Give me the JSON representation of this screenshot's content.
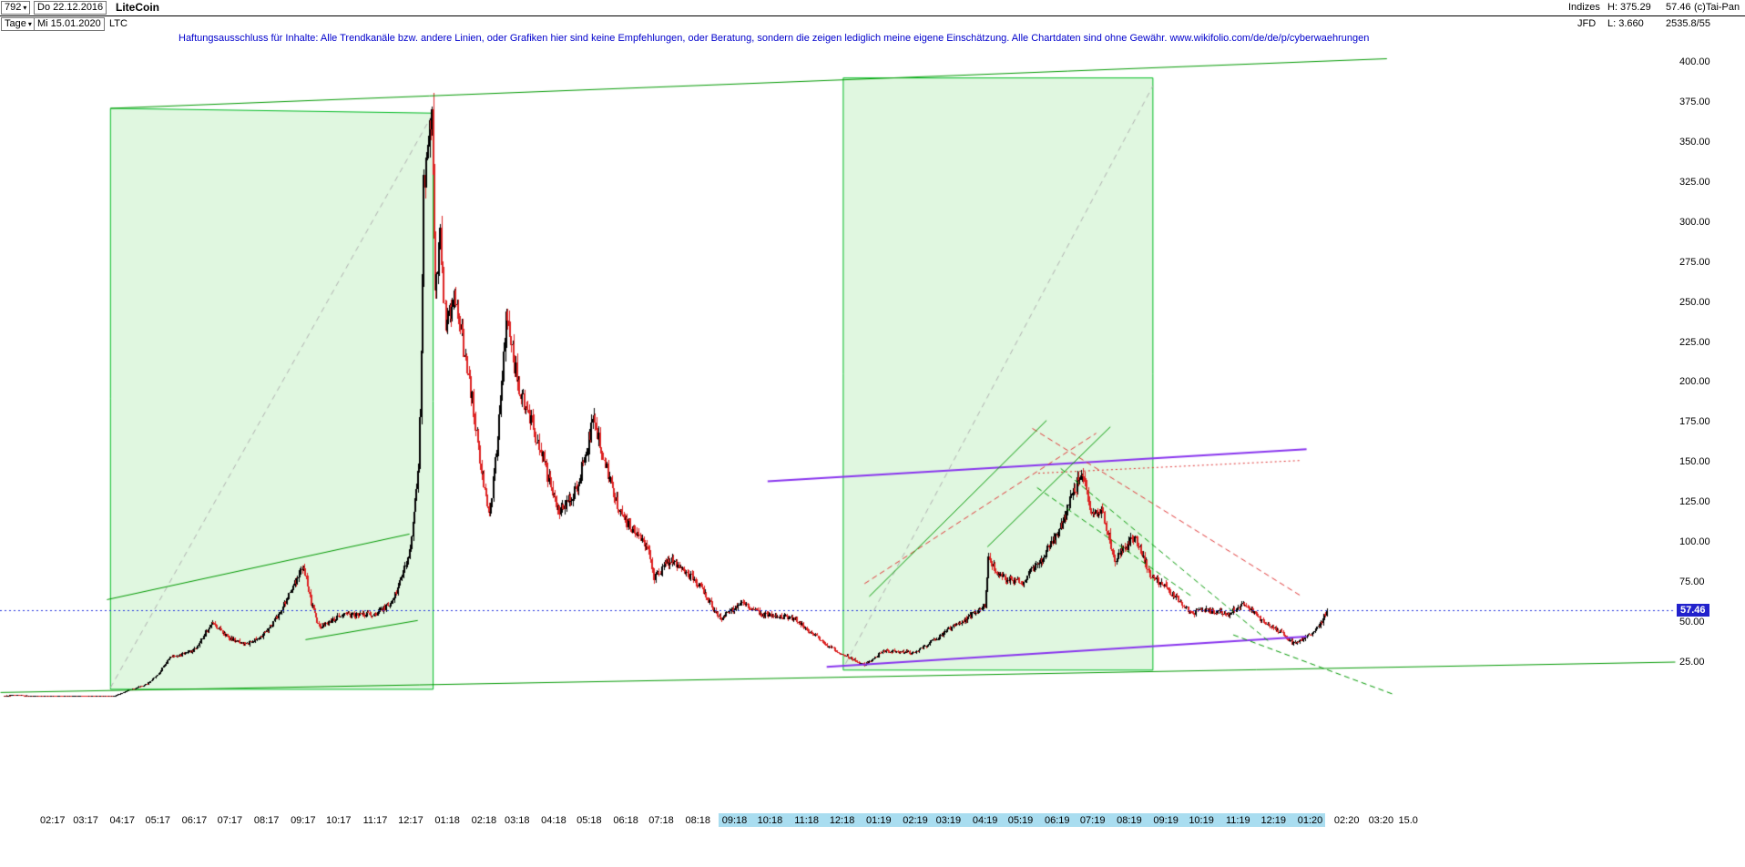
{
  "header": {
    "chart_number": "792",
    "start_date": "Do 22.12.2016",
    "title": "LiteCoin",
    "period": "Tage",
    "end_date": "Mi 15.01.2020",
    "symbol": "LTC",
    "indizes_label": "Indizes",
    "broker_label": "JFD",
    "high_text": "H: 375.29",
    "low_text": "L: 3.660",
    "last_price": "57.46",
    "volume_text": "2535.8/55",
    "copyright": "(c)Tai-Pan"
  },
  "icons": {
    "dropdown": "▾"
  },
  "disclaimer": "Haftungsausschluss für Inhalte: Alle Trendkanäle bzw. andere Linien, oder Grafiken hier sind keine Empfehlungen, oder Beratung, sondern die zeigen lediglich meine eigene Einschätzung. Alle Chartdaten sind ohne Gewähr.  www.wikifolio.com/de/de/p/cyberwaehrungen",
  "price_tag": "57.46",
  "colors": {
    "candle_up": "#000000",
    "candle_down": "#dd2222",
    "channel_fill": "rgba(0,190,0,0.12)",
    "channel_border": "#00bb22",
    "green": "#009900",
    "violet": "#8833ee",
    "red": "#e03333",
    "blue": "#2233dd",
    "gray_dash": "#b0b0b0",
    "axis_highlight": "#a9ddf0",
    "tag_bg": "#2222cc",
    "disclaimer_text": "#0000cc"
  },
  "chart_data": {
    "type": "candlestick",
    "title": "LiteCoin",
    "instrument": "LiteCoin (LTC)",
    "timeframe": "Tage (daily)",
    "date_range": {
      "from": "22.12.2016",
      "to": "15.01.2020"
    },
    "high": 375.29,
    "low": 3.66,
    "last": 57.46,
    "y_axis": {
      "ticks": [
        400,
        375,
        350,
        325,
        300,
        275,
        250,
        225,
        200,
        175,
        150,
        125,
        100,
        75,
        50,
        25
      ],
      "format": "0.00"
    },
    "x_axis": {
      "labels": [
        {
          "label": "02:17",
          "hl": false
        },
        {
          "label": "03:17",
          "hl": false
        },
        {
          "label": "04:17",
          "hl": false
        },
        {
          "label": "05:17",
          "hl": false
        },
        {
          "label": "06:17",
          "hl": false
        },
        {
          "label": "07:17",
          "hl": false
        },
        {
          "label": "08:17",
          "hl": false
        },
        {
          "label": "09:17",
          "hl": false
        },
        {
          "label": "10:17",
          "hl": false
        },
        {
          "label": "11:17",
          "hl": false
        },
        {
          "label": "12:17",
          "hl": false
        },
        {
          "label": "01:18",
          "hl": false
        },
        {
          "label": "02:18",
          "hl": false
        },
        {
          "label": "03:18",
          "hl": false
        },
        {
          "label": "04:18",
          "hl": false
        },
        {
          "label": "05:18",
          "hl": false
        },
        {
          "label": "06:18",
          "hl": false
        },
        {
          "label": "07:18",
          "hl": false
        },
        {
          "label": "08:18",
          "hl": false
        },
        {
          "label": "09:18",
          "hl": true
        },
        {
          "label": "10:18",
          "hl": true
        },
        {
          "label": "11:18",
          "hl": true
        },
        {
          "label": "12:18",
          "hl": true
        },
        {
          "label": "01:19",
          "hl": true
        },
        {
          "label": "02:19",
          "hl": true
        },
        {
          "label": "03:19",
          "hl": true
        },
        {
          "label": "04:19",
          "hl": true
        },
        {
          "label": "05:19",
          "hl": true
        },
        {
          "label": "06:19",
          "hl": true
        },
        {
          "label": "07:19",
          "hl": true
        },
        {
          "label": "08:19",
          "hl": true
        },
        {
          "label": "09:19",
          "hl": true
        },
        {
          "label": "10:19",
          "hl": true
        },
        {
          "label": "11:19",
          "hl": true
        },
        {
          "label": "12:19",
          "hl": true
        },
        {
          "label": "01:20",
          "hl": true
        },
        {
          "label": "02:20",
          "hl": false
        },
        {
          "label": "03:20",
          "hl": false
        },
        {
          "label": "15.0",
          "hl": false
        }
      ]
    },
    "price_anchors_note": "day offset from 2017-01-01, approximate close price read from chart",
    "price_anchors": [
      [
        -10,
        4.1
      ],
      [
        0,
        4.3
      ],
      [
        20,
        3.9
      ],
      [
        45,
        3.75
      ],
      [
        74,
        4.0
      ],
      [
        82,
        3.7
      ],
      [
        95,
        7.5
      ],
      [
        110,
        11
      ],
      [
        130,
        28
      ],
      [
        150,
        32
      ],
      [
        166,
        50
      ],
      [
        180,
        40
      ],
      [
        196,
        36
      ],
      [
        212,
        44
      ],
      [
        243,
        86
      ],
      [
        250,
        62
      ],
      [
        257,
        47
      ],
      [
        274,
        54
      ],
      [
        304,
        55
      ],
      [
        319,
        63
      ],
      [
        334,
        98
      ],
      [
        341,
        150
      ],
      [
        345,
        320
      ],
      [
        352,
        373
      ],
      [
        355,
        255
      ],
      [
        359,
        295
      ],
      [
        364,
        230
      ],
      [
        371,
        260
      ],
      [
        385,
        195
      ],
      [
        401,
        118
      ],
      [
        415,
        240
      ],
      [
        425,
        200
      ],
      [
        445,
        155
      ],
      [
        460,
        118
      ],
      [
        475,
        135
      ],
      [
        489,
        178
      ],
      [
        510,
        120
      ],
      [
        535,
        95
      ],
      [
        540,
        78
      ],
      [
        555,
        90
      ],
      [
        580,
        72
      ],
      [
        596,
        52
      ],
      [
        615,
        62
      ],
      [
        630,
        55
      ],
      [
        660,
        52
      ],
      [
        690,
        34
      ],
      [
        710,
        26
      ],
      [
        718,
        23.5
      ],
      [
        733,
        32
      ],
      [
        760,
        31
      ],
      [
        790,
        46
      ],
      [
        820,
        60
      ],
      [
        823,
        92
      ],
      [
        830,
        79
      ],
      [
        850,
        74
      ],
      [
        870,
        92
      ],
      [
        885,
        110
      ],
      [
        895,
        132
      ],
      [
        902,
        143
      ],
      [
        910,
        120
      ],
      [
        920,
        118
      ],
      [
        930,
        90
      ],
      [
        947,
        103
      ],
      [
        960,
        80
      ],
      [
        975,
        70
      ],
      [
        995,
        56
      ],
      [
        1010,
        57
      ],
      [
        1025,
        55
      ],
      [
        1040,
        62
      ],
      [
        1055,
        50
      ],
      [
        1070,
        44
      ],
      [
        1081,
        36.5
      ],
      [
        1095,
        42
      ],
      [
        1105,
        50
      ],
      [
        1109,
        57.46
      ]
    ],
    "overlays": {
      "channels": [
        {
          "d1": 80,
          "p1": 371,
          "d2": 353,
          "p2": 368,
          "pb": 8
        },
        {
          "d1": 700,
          "p1": 390,
          "d2": 962,
          "p2": 390,
          "pb": 20
        }
      ],
      "diagonals": [
        {
          "d1": 80,
          "p1": 9,
          "d2": 353,
          "p2": 368
        },
        {
          "d1": 702,
          "p1": 24,
          "d2": 962,
          "p2": 385
        }
      ],
      "lines": [
        {
          "d1": 80,
          "p1": 371,
          "d2": 1160,
          "p2": 402,
          "c": "green",
          "w": 1,
          "s": "solid"
        },
        {
          "d1": 77,
          "p1": 64,
          "d2": 333,
          "p2": 105,
          "c": "green",
          "w": 1,
          "s": "solid"
        },
        {
          "d1": 245,
          "p1": 39,
          "d2": 340,
          "p2": 51,
          "c": "green",
          "w": 1,
          "s": "solid"
        },
        {
          "d1": -13,
          "p1": 6,
          "d2": 1404,
          "p2": 25,
          "c": "green",
          "w": 1,
          "s": "solid"
        },
        {
          "d1": 636,
          "p1": 138,
          "d2": 1092,
          "p2": 158,
          "c": "violet",
          "w": 2,
          "s": "solid"
        },
        {
          "d1": 686,
          "p1": 22,
          "d2": 1092,
          "p2": 41,
          "c": "violet",
          "w": 2,
          "s": "solid"
        },
        {
          "d1": 718,
          "p1": 74,
          "d2": 914,
          "p2": 168,
          "c": "red",
          "w": 1,
          "s": "dashed"
        },
        {
          "d1": 860,
          "p1": 171,
          "d2": 1088,
          "p2": 66,
          "c": "red",
          "w": 1,
          "s": "dashed"
        },
        {
          "d1": 865,
          "p1": 143,
          "d2": 1088,
          "p2": 151,
          "c": "red",
          "w": 1,
          "s": "dotted"
        },
        {
          "d1": 722,
          "p1": 66,
          "d2": 872,
          "p2": 176,
          "c": "green",
          "w": 1,
          "s": "solid"
        },
        {
          "d1": 822,
          "p1": 97,
          "d2": 926,
          "p2": 172,
          "c": "green",
          "w": 1,
          "s": "solid"
        },
        {
          "d1": 864,
          "p1": 134,
          "d2": 995,
          "p2": 66,
          "c": "green",
          "w": 1,
          "s": "dashed"
        },
        {
          "d1": 884,
          "p1": 146,
          "d2": 1060,
          "p2": 38,
          "c": "green",
          "w": 1,
          "s": "dashed"
        },
        {
          "d1": 1030,
          "p1": 42,
          "d2": 1165,
          "p2": 5,
          "c": "green",
          "w": 1,
          "s": "dashed"
        }
      ],
      "hline": {
        "price": 57.46,
        "c": "blue",
        "s": "dotted"
      }
    }
  }
}
